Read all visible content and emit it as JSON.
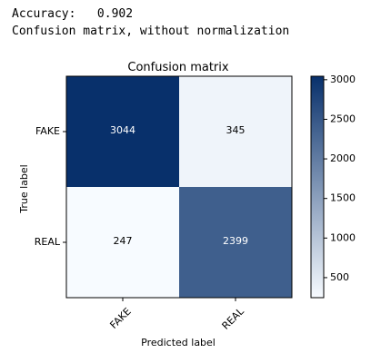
{
  "console": {
    "accuracy_line": "Accuracy:   0.902",
    "subtitle_line": "Confusion matrix, without normalization"
  },
  "colors": {
    "cmap": "Blues",
    "low": "#f7fbff",
    "high": "#08306b",
    "text_light": "#ffffff",
    "text_dark": "#000000"
  },
  "chart_data": {
    "type": "heatmap",
    "title": "Confusion matrix",
    "xlabel": "Predicted label",
    "ylabel": "True label",
    "x_categories": [
      "FAKE",
      "REAL"
    ],
    "y_categories": [
      "FAKE",
      "REAL"
    ],
    "values": [
      [
        3044,
        345
      ],
      [
        247,
        2399
      ]
    ],
    "colorbar": {
      "range": [
        247,
        3044
      ],
      "ticks": [
        500,
        1000,
        1500,
        2000,
        2500,
        3000
      ]
    },
    "grid": false
  }
}
